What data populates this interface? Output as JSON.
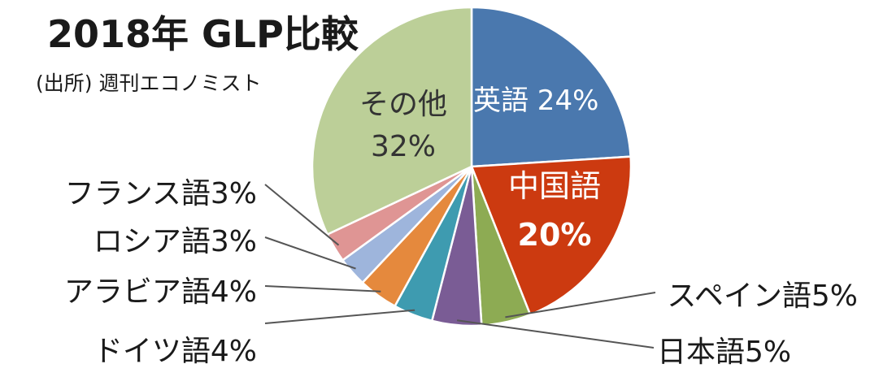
{
  "chart_data": {
    "type": "pie",
    "title": "2018年 GLP比較",
    "subtitle": "(出所) 週刊エコノミスト",
    "slices": [
      {
        "label": "英語",
        "value": 24,
        "color": "#4a78ae"
      },
      {
        "label": "中国語",
        "value": 20,
        "color": "#cc3a10"
      },
      {
        "label": "スペイン語",
        "value": 5,
        "color": "#8dab53"
      },
      {
        "label": "日本語",
        "value": 5,
        "color": "#7a5c95"
      },
      {
        "label": "ドイツ語",
        "value": 4,
        "color": "#3e9bb0"
      },
      {
        "label": "アラビア語",
        "value": 4,
        "color": "#e5893d"
      },
      {
        "label": "ロシア語",
        "value": 3,
        "color": "#9eb5dc"
      },
      {
        "label": "フランス語",
        "value": 3,
        "color": "#df9594"
      },
      {
        "label": "その他",
        "value": 32,
        "color": "#bccf98"
      }
    ],
    "data_labels": [
      "英語 24%",
      "中国語",
      "20%",
      "スペイン語5%",
      "日本語5%",
      "ドイツ語4%",
      "アラビア語4%",
      "ロシア語3%",
      "フランス語3%",
      "その他",
      "32%"
    ]
  }
}
